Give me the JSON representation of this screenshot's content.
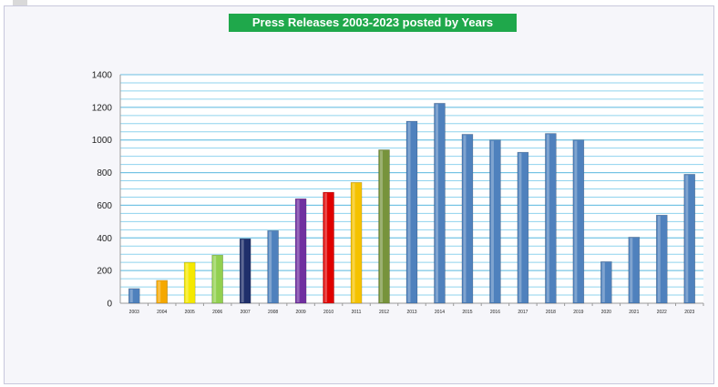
{
  "chart_data": {
    "type": "bar",
    "title": "Press Releases 2003-2023 posted by Years",
    "categories": [
      "2003",
      "2004",
      "2005",
      "2006",
      "2007",
      "2008",
      "2009",
      "2010",
      "2011",
      "2012",
      "2013",
      "2014",
      "2015",
      "2016",
      "2017",
      "2018",
      "2019",
      "2020",
      "2021",
      "2022",
      "2023"
    ],
    "values": [
      90,
      140,
      250,
      295,
      395,
      445,
      640,
      680,
      740,
      940,
      1115,
      1225,
      1035,
      1000,
      925,
      1040,
      1000,
      255,
      405,
      540,
      790
    ],
    "bar_colors": [
      "#4f81bd",
      "#f5a800",
      "#f5e900",
      "#92d050",
      "#1f2f6b",
      "#4f81bd",
      "#7030a0",
      "#e00000",
      "#f5c200",
      "#77933c",
      "#4f81bd",
      "#4f81bd",
      "#4f81bd",
      "#4f81bd",
      "#4f81bd",
      "#4f81bd",
      "#4f81bd",
      "#4f81bd",
      "#4f81bd",
      "#4f81bd",
      "#4f81bd"
    ],
    "ylim": [
      0,
      1400
    ],
    "yticks": [
      "0",
      "200",
      "400",
      "600",
      "800",
      "1000",
      "1200",
      "1400"
    ],
    "xlabel": "",
    "ylabel": "",
    "grid": true,
    "grid_color": "#8fd3ee",
    "title_bg": "#1fa84b"
  }
}
